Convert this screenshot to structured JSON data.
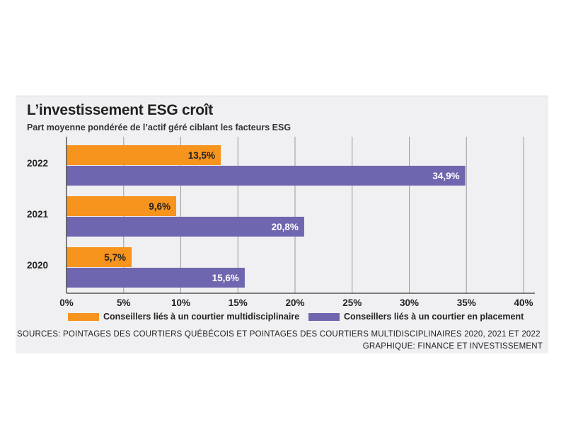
{
  "colors": {
    "orange": "#f7941d",
    "purple": "#6f66b0",
    "panel_bg": "#f0f0f2",
    "grid": "#9a9aa0"
  },
  "chart_data": {
    "type": "bar",
    "orientation": "horizontal",
    "title": "L’investissement ESG croît",
    "subtitle": "Part moyenne pondérée de l’actif géré ciblant les facteurs ESG",
    "categories": [
      "2022",
      "2021",
      "2020"
    ],
    "series": [
      {
        "name": "Conseillers liés à un courtier multidisciplinaire",
        "color": "#f7941d",
        "values": [
          13.5,
          9.6,
          5.7
        ],
        "labels": [
          "13,5%",
          "9,6%",
          "5,7%"
        ]
      },
      {
        "name": "Conseillers liés à un courtier en placement",
        "color": "#6f66b0",
        "values": [
          34.9,
          20.8,
          15.6
        ],
        "labels": [
          "34,9%",
          "20,8%",
          "15,6%"
        ]
      }
    ],
    "xlim": [
      0,
      40
    ],
    "xticks": [
      0,
      5,
      10,
      15,
      20,
      25,
      30,
      35,
      40
    ],
    "xtick_labels": [
      "0%",
      "5%",
      "10%",
      "15%",
      "20%",
      "25%",
      "30%",
      "35%",
      "40%"
    ],
    "grid": true,
    "legend": "bottom"
  },
  "footer": {
    "source": "SOURCES: POINTAGES DES COURTIERS QUÉBÉCOIS ET POINTAGES DES COURTIERS MULTIDISCIPLINAIRES 2020, 2021 ET 2022",
    "credit": "GRAPHIQUE: FINANCE ET INVESTISSEMENT"
  }
}
